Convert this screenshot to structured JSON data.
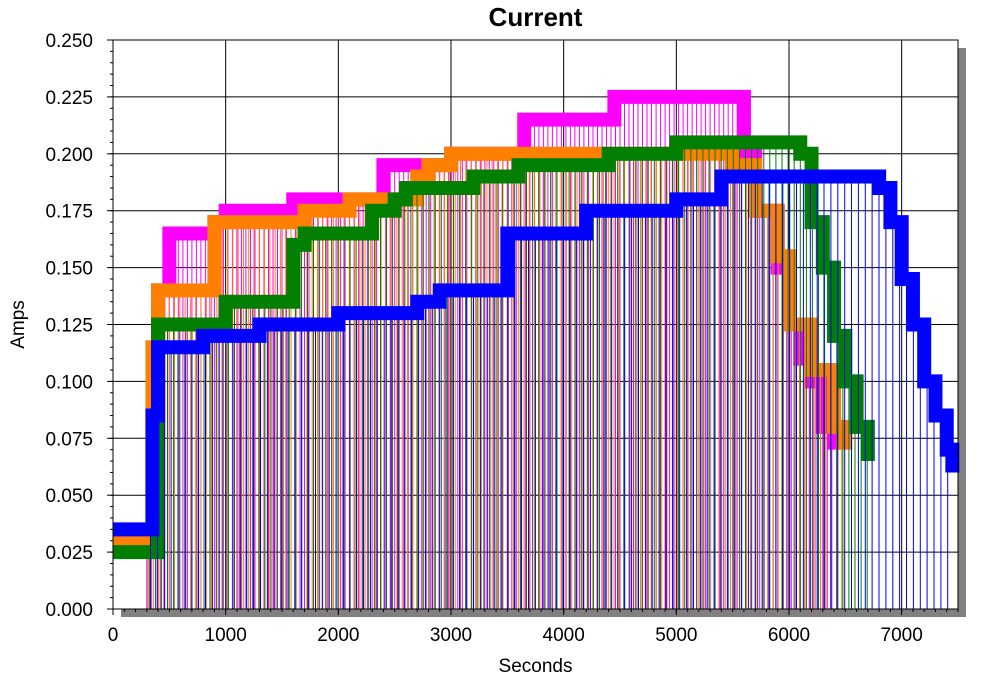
{
  "chart_data": {
    "type": "line",
    "title": "Current",
    "xlabel": "Seconds",
    "ylabel": "Amps",
    "xlim": [
      0,
      7500
    ],
    "ylim": [
      0,
      0.25
    ],
    "x_ticks": [
      "0",
      "1000",
      "2000",
      "3000",
      "4000",
      "5000",
      "6000",
      "7000"
    ],
    "y_ticks": [
      "0.000",
      "0.025",
      "0.050",
      "0.075",
      "0.100",
      "0.125",
      "0.150",
      "0.175",
      "0.200",
      "0.225",
      "0.250"
    ],
    "grid": true,
    "legend": "none",
    "series": [
      {
        "color": "#ff00ff",
        "x": [
          0,
          300,
          400,
          500,
          900,
          1000,
          1300,
          1600,
          1900,
          2300,
          2400,
          2700,
          3000,
          3300,
          3600,
          3650,
          4000,
          4400,
          4450,
          4800,
          5100,
          5400,
          5600,
          5700,
          5900,
          6000,
          6100,
          6200,
          6300,
          6400
        ],
        "values": [
          0.03,
          0.03,
          0.14,
          0.165,
          0.17,
          0.175,
          0.175,
          0.18,
          0.18,
          0.18,
          0.195,
          0.195,
          0.2,
          0.2,
          0.2,
          0.215,
          0.215,
          0.215,
          0.225,
          0.225,
          0.225,
          0.225,
          0.2,
          0.175,
          0.15,
          0.125,
          0.11,
          0.1,
          0.08,
          0.07
        ]
      },
      {
        "color": "#ff8000",
        "x": [
          0,
          300,
          350,
          400,
          600,
          900,
          1200,
          1600,
          1700,
          2100,
          2500,
          2700,
          2800,
          3000,
          3300,
          3600,
          3900,
          4200,
          4500,
          4900,
          5300,
          5500,
          5700,
          5900,
          6000,
          6200,
          6400,
          6500
        ],
        "values": [
          0.03,
          0.03,
          0.115,
          0.14,
          0.14,
          0.17,
          0.17,
          0.17,
          0.175,
          0.18,
          0.18,
          0.19,
          0.195,
          0.2,
          0.2,
          0.2,
          0.2,
          0.2,
          0.2,
          0.2,
          0.2,
          0.195,
          0.175,
          0.155,
          0.125,
          0.105,
          0.08,
          0.07
        ]
      },
      {
        "color": "#007f00",
        "x": [
          0,
          300,
          400,
          600,
          1000,
          1400,
          1600,
          1700,
          2000,
          2300,
          2500,
          2600,
          2900,
          3200,
          3600,
          4000,
          4400,
          4600,
          5000,
          5400,
          5700,
          6100,
          6200,
          6300,
          6400,
          6500,
          6600,
          6700
        ],
        "values": [
          0.025,
          0.025,
          0.125,
          0.125,
          0.135,
          0.135,
          0.16,
          0.165,
          0.165,
          0.175,
          0.18,
          0.185,
          0.185,
          0.19,
          0.195,
          0.195,
          0.2,
          0.2,
          0.205,
          0.205,
          0.205,
          0.2,
          0.17,
          0.15,
          0.12,
          0.1,
          0.08,
          0.065
        ]
      },
      {
        "color": "#0000ff",
        "x": [
          0,
          300,
          350,
          400,
          800,
          1000,
          1300,
          1700,
          2000,
          2300,
          2700,
          2900,
          3300,
          3500,
          3900,
          4200,
          4600,
          5000,
          5400,
          5700,
          6000,
          6300,
          6600,
          6800,
          6900,
          7000,
          7100,
          7200,
          7300,
          7400,
          7450
        ],
        "values": [
          0.035,
          0.035,
          0.085,
          0.115,
          0.12,
          0.12,
          0.125,
          0.125,
          0.13,
          0.13,
          0.135,
          0.14,
          0.14,
          0.165,
          0.165,
          0.175,
          0.175,
          0.18,
          0.19,
          0.19,
          0.19,
          0.19,
          0.19,
          0.185,
          0.17,
          0.145,
          0.125,
          0.1,
          0.085,
          0.07,
          0.06
        ]
      }
    ]
  }
}
